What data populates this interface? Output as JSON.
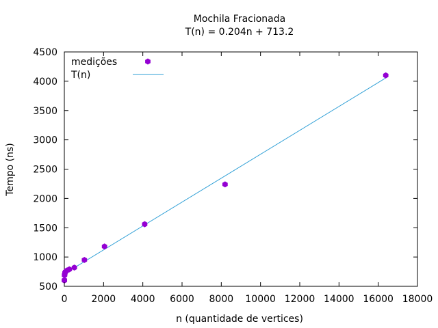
{
  "chart_data": {
    "type": "scatter",
    "title": "Mochila Fracionada",
    "subtitle": "T(n) = 0.204n + 713.2",
    "xlabel": "n (quantidade de vertices)",
    "ylabel": "Tempo (ns)",
    "xlim": [
      0,
      18000
    ],
    "ylim": [
      500,
      4500
    ],
    "xticks": [
      0,
      2000,
      4000,
      6000,
      8000,
      10000,
      12000,
      14000,
      16000,
      18000
    ],
    "yticks": [
      500,
      1000,
      1500,
      2000,
      2500,
      3000,
      3500,
      4000,
      4500
    ],
    "grid": false,
    "legend_position": "top-left",
    "series": [
      {
        "name": "medições",
        "kind": "points",
        "color": "#9400d3",
        "x": [
          2,
          4,
          8,
          16,
          32,
          64,
          128,
          256,
          512,
          1024,
          2048,
          4096,
          8192,
          16384
        ],
        "y": [
          600,
          605,
          690,
          700,
          730,
          750,
          770,
          790,
          820,
          950,
          1180,
          1560,
          2240,
          4100
        ]
      },
      {
        "name": "T(n)",
        "kind": "line",
        "color": "#2e9fd6",
        "slope": 0.204,
        "intercept": 713.2,
        "x_range": [
          0,
          16384
        ]
      }
    ]
  }
}
